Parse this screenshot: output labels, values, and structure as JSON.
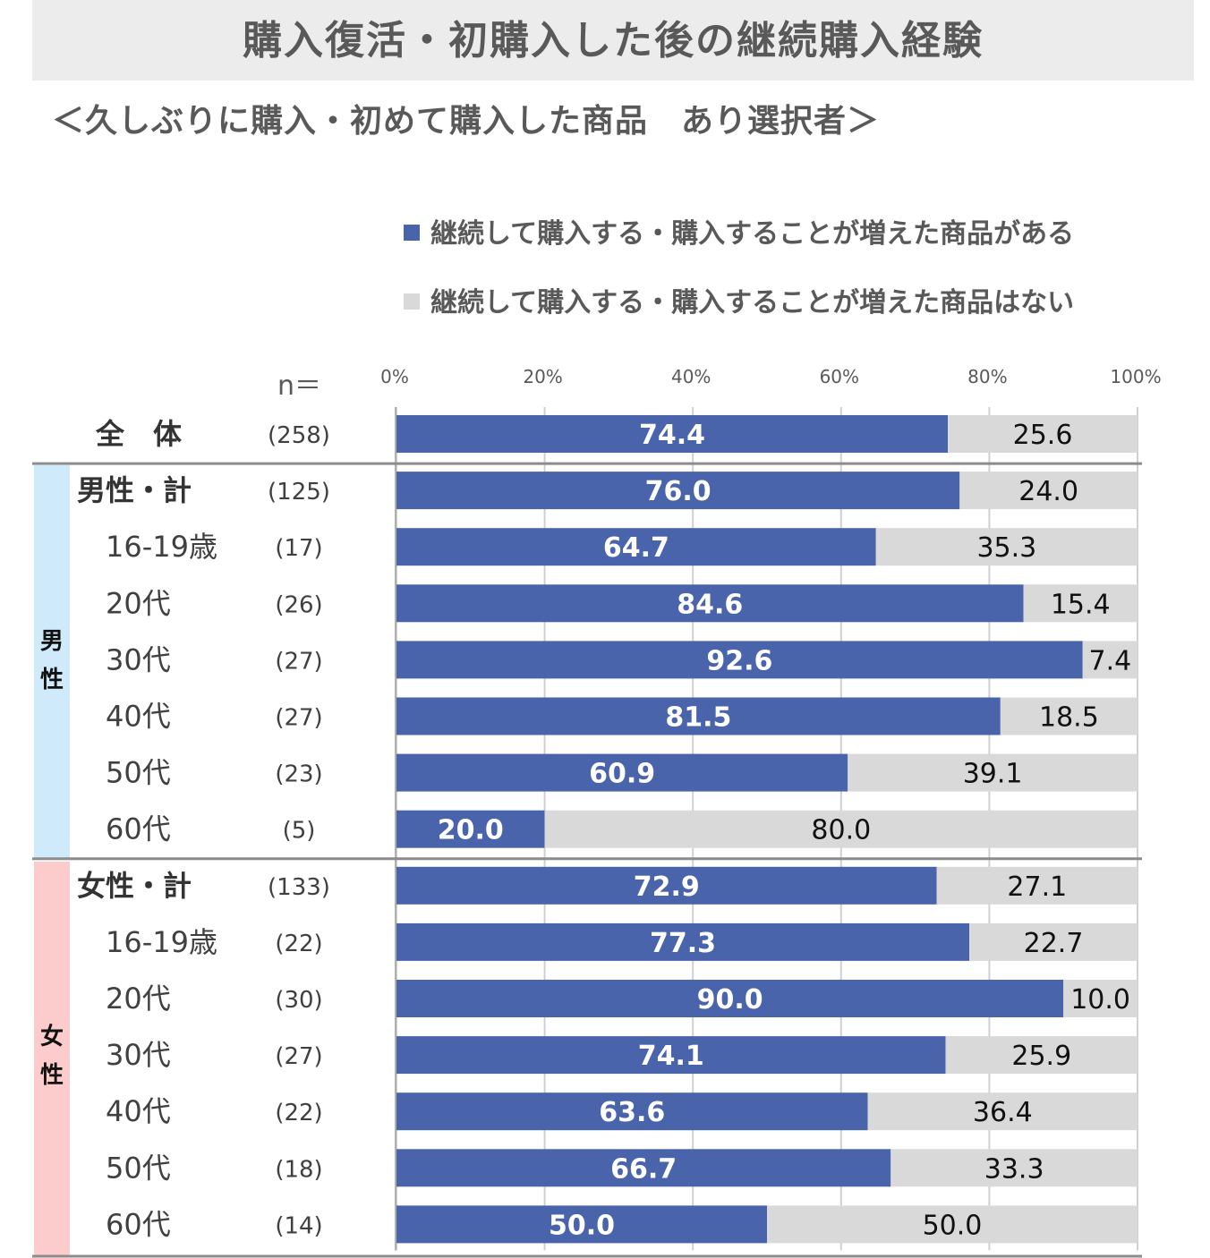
{
  "title": "購入復活・初購入した後の継続購入経験",
  "subtitle": "＜久しぶりに購入・初めて購入した商品　あり選択者＞",
  "n_label": "n＝",
  "colors": {
    "series1": "#4a64ab",
    "series2": "#d9d9d9",
    "male_band": "#cfeafb",
    "female_band": "#fccccc"
  },
  "gender_labels": {
    "male": "男性",
    "female": "女性"
  },
  "chart_data": {
    "type": "bar",
    "orientation": "horizontal",
    "stacked": true,
    "xlim": [
      0,
      100
    ],
    "x_ticks": [
      "0%",
      "20%",
      "40%",
      "60%",
      "80%",
      "100%"
    ],
    "grid": true,
    "legend_position": "top-right",
    "series": [
      {
        "name": "継続して購入する・購入することが増えた商品がある",
        "values": [
          74.4,
          76.0,
          64.7,
          84.6,
          92.6,
          81.5,
          60.9,
          20.0,
          72.9,
          77.3,
          90.0,
          74.1,
          63.6,
          66.7,
          50.0
        ]
      },
      {
        "name": "継続して購入する・購入することが増えた商品はない",
        "values": [
          25.6,
          24.0,
          35.3,
          15.4,
          7.4,
          18.5,
          39.1,
          80.0,
          27.1,
          22.7,
          10.0,
          25.9,
          36.4,
          33.3,
          50.0
        ]
      }
    ],
    "series1_labels": [
      "74.4",
      "76.0",
      "64.7",
      "84.6",
      "92.6",
      "81.5",
      "60.9",
      "20.0",
      "72.9",
      "77.3",
      "90.0",
      "74.1",
      "63.6",
      "66.7",
      "50.0"
    ],
    "series2_labels": [
      "25.6",
      "24.0",
      "35.3",
      "15.4",
      "7.4",
      "18.5",
      "39.1",
      "80.0",
      "27.1",
      "22.7",
      "10.0",
      "25.9",
      "36.4",
      "33.3",
      "50.0"
    ],
    "categories": [
      "全　体",
      "男性・計",
      "16-19歳",
      "20代",
      "30代",
      "40代",
      "50代",
      "60代",
      "女性・計",
      "16-19歳",
      "20代",
      "30代",
      "40代",
      "50代",
      "60代"
    ],
    "n": [
      "(258)",
      "(125)",
      "(17)",
      "(26)",
      "(27)",
      "(27)",
      "(23)",
      "(5)",
      "(133)",
      "(22)",
      "(30)",
      "(27)",
      "(22)",
      "(18)",
      "(14)"
    ],
    "row_style": [
      "total",
      "subtotal",
      "sub",
      "sub",
      "sub",
      "sub",
      "sub",
      "sub",
      "subtotal",
      "sub",
      "sub",
      "sub",
      "sub",
      "sub",
      "sub"
    ]
  }
}
